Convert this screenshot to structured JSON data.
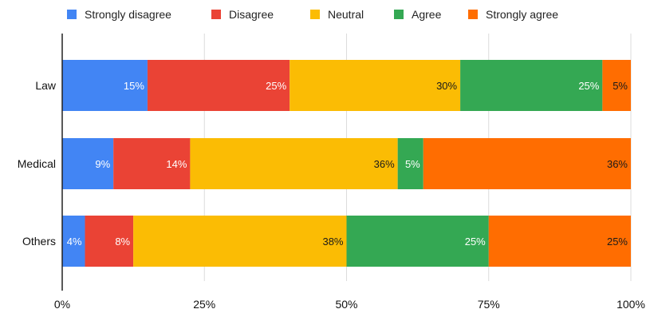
{
  "chart_data": {
    "type": "bar",
    "orientation": "horizontal",
    "stacked": true,
    "normalized": true,
    "title": "",
    "xlabel": "",
    "ylabel": "",
    "xlim": [
      0,
      100
    ],
    "grid": true,
    "legend_position": "top",
    "categories": [
      "Law",
      "Medical",
      "Others"
    ],
    "x_tick_labels": [
      "0%",
      "25%",
      "50%",
      "75%",
      "100%"
    ],
    "x_ticks": [
      0,
      25,
      50,
      75,
      100
    ],
    "series": [
      {
        "name": "Strongly disagree",
        "color": "#4285F4",
        "label_color": "#ffffff",
        "values": [
          15,
          9,
          4
        ],
        "labels": [
          "15%",
          "9%",
          "4%"
        ]
      },
      {
        "name": "Disagree",
        "color": "#EA4335",
        "label_color": "#ffffff",
        "values": [
          25,
          13.5,
          8.5
        ],
        "labels": [
          "25%",
          "14%",
          "8%"
        ]
      },
      {
        "name": "Neutral",
        "color": "#FBBC04",
        "label_color": "#1a1a1a",
        "values": [
          30,
          36.5,
          37.5
        ],
        "labels": [
          "30%",
          "36%",
          "38%"
        ]
      },
      {
        "name": "Agree",
        "color": "#34A853",
        "label_color": "#ffffff",
        "values": [
          25,
          4.5,
          25
        ],
        "labels": [
          "25%",
          "5%",
          "25%"
        ]
      },
      {
        "name": "Strongly agree",
        "color": "#FF6D01",
        "label_color": "#1a1a1a",
        "values": [
          5,
          36.5,
          25
        ],
        "labels": [
          "5%",
          "36%",
          "25%"
        ]
      }
    ]
  }
}
